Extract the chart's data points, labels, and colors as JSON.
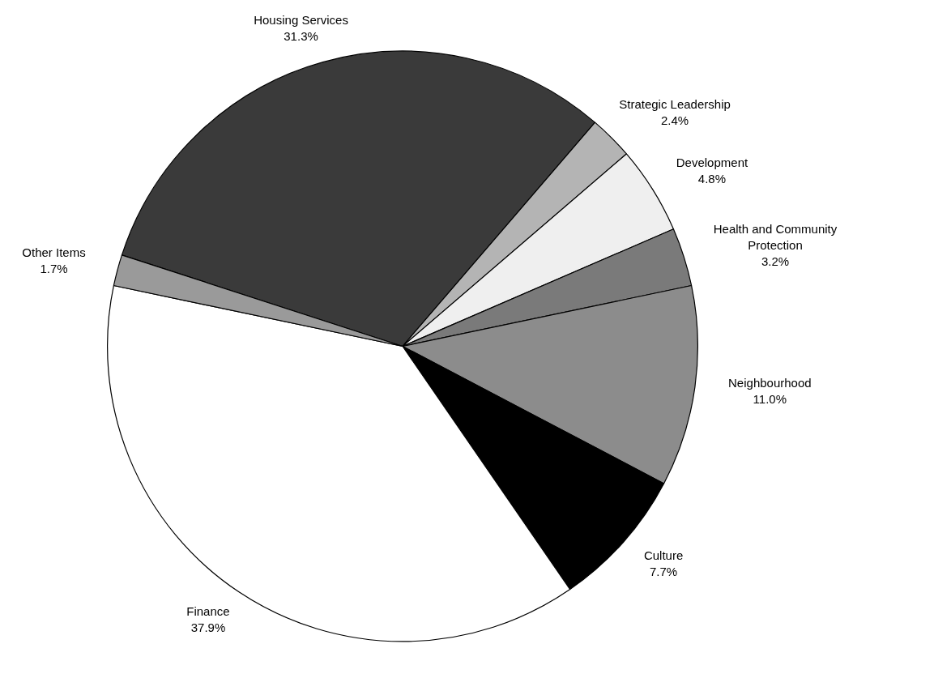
{
  "chart_data": {
    "type": "pie",
    "categories": [
      "Housing Services",
      "Strategic Leadership",
      "Development",
      "Health and Community Protection",
      "Neighbourhood",
      "Culture",
      "Finance",
      "Other Items"
    ],
    "values": [
      31.3,
      2.4,
      4.8,
      3.2,
      11.0,
      7.7,
      37.9,
      1.7
    ],
    "colors": [
      "#3a3a3a",
      "#b4b4b4",
      "#efefef",
      "#7a7a7a",
      "#8c8c8c",
      "#000000",
      "#ffffff",
      "#9a9a9a"
    ],
    "value_labels": [
      "31.3%",
      "2.4%",
      "4.8%",
      "3.2%",
      "11.0%",
      "7.7%",
      "37.9%",
      "1.7%"
    ],
    "legend": false
  }
}
